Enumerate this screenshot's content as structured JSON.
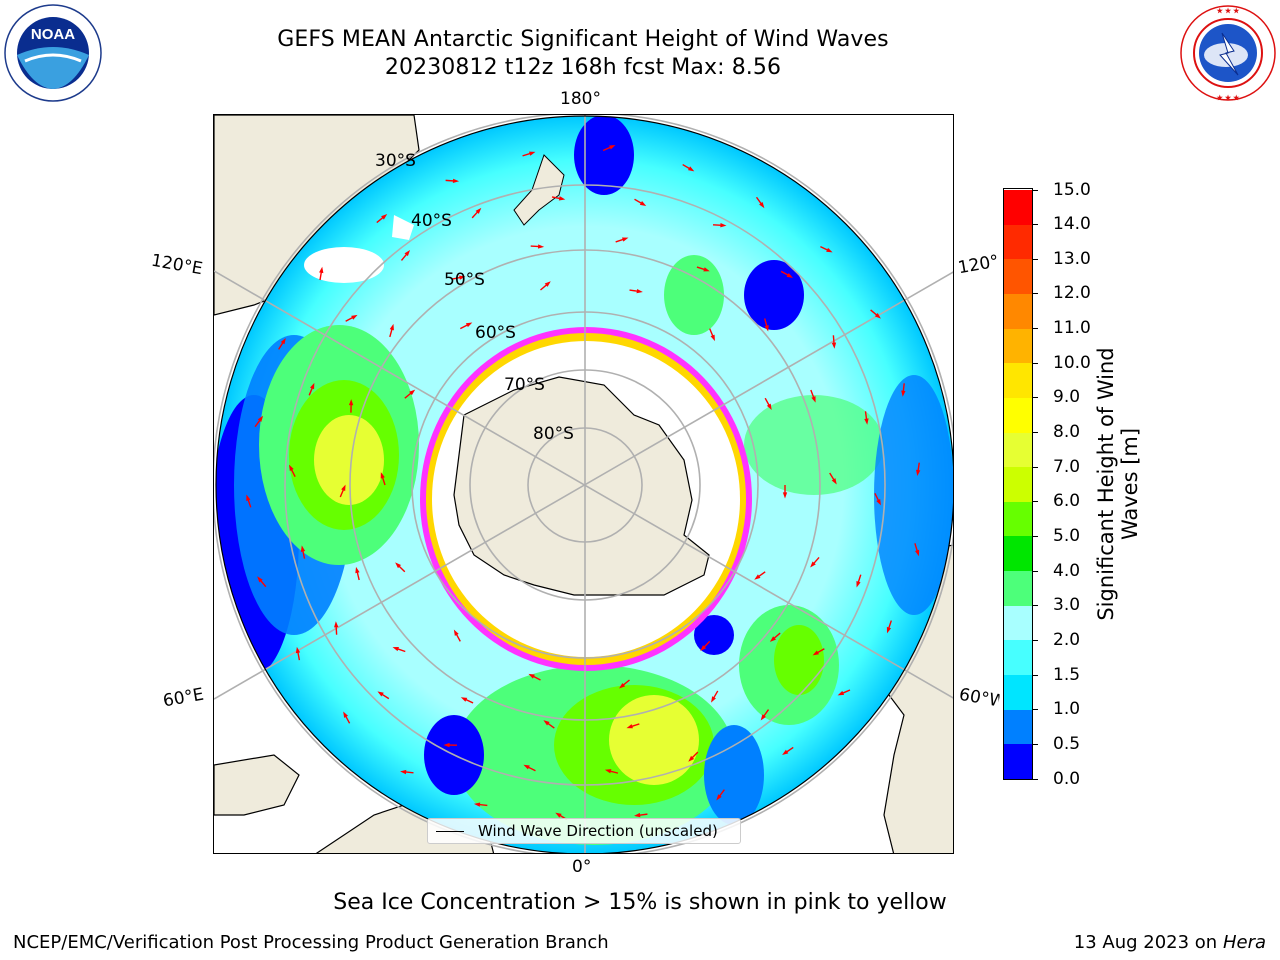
{
  "header": {
    "title_line1": "GEFS MEAN Antarctic Significant Height of Wind Waves",
    "title_line2": "20230812 t12z 168h fcst   Max: 8.56"
  },
  "logos": {
    "noaa_text": "NOAA",
    "noaa_ring_text": "NATIONAL OCEANIC AND ATMOSPHERIC ADMINISTRATION · U.S. DEPARTMENT OF COMMERCE",
    "nws_ring_text": "NATIONAL WEATHER SERVICE"
  },
  "map": {
    "projection": "south-polar-stereographic",
    "lon_labels": {
      "top": "180°",
      "bottom": "0°",
      "upper_left": "120°E",
      "upper_right": "120°W",
      "lower_left": "60°E",
      "lower_right": "60°W"
    },
    "lat_labels": [
      "30°S",
      "40°S",
      "50°S",
      "60°S",
      "70°S",
      "80°S"
    ],
    "legend_label": "Wind Wave Direction (unscaled)",
    "colors": {
      "land": "#efebdc",
      "sea_ice_edge": "#ff33ff",
      "sea_ice_inner": "#ffd700",
      "arrow": "#ff0000",
      "grid": "#b0b0b0"
    }
  },
  "colorbar": {
    "title_line1": "Significant Height of Wind",
    "title_line2": "Waves [m]",
    "ticks": [
      "0.0",
      "0.5",
      "1.0",
      "1.5",
      "2.0",
      "3.0",
      "4.0",
      "5.0",
      "6.0",
      "7.0",
      "8.0",
      "9.0",
      "10.0",
      "11.0",
      "12.0",
      "13.0",
      "14.0",
      "15.0"
    ],
    "levels": [
      {
        "color": "#0000ff"
      },
      {
        "color": "#0080ff"
      },
      {
        "color": "#00e5ff"
      },
      {
        "color": "#47ffff"
      },
      {
        "color": "#a8ffff"
      },
      {
        "color": "#4dff7a"
      },
      {
        "color": "#00e600"
      },
      {
        "color": "#66ff00"
      },
      {
        "color": "#ccff00"
      },
      {
        "color": "#e6ff33"
      },
      {
        "color": "#ffff00"
      },
      {
        "color": "#ffe600"
      },
      {
        "color": "#ffb300"
      },
      {
        "color": "#ff8800"
      },
      {
        "color": "#ff5500"
      },
      {
        "color": "#ff2a00"
      },
      {
        "color": "#ff0000"
      }
    ]
  },
  "notes": {
    "sea_ice": "Sea Ice Concentration > 15% is shown in pink to yellow"
  },
  "footer": {
    "left": "NCEP/EMC/Verification Post Processing Product Generation Branch",
    "right_prefix": "13 Aug 2023 on",
    "right_host": "Hera"
  }
}
